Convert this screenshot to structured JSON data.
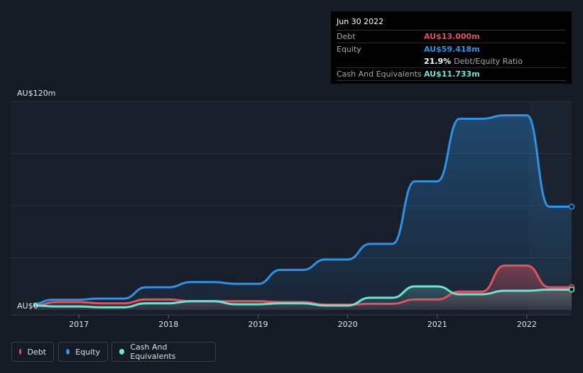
{
  "tooltip": {
    "date": "Jun 30 2022",
    "debt_label": "Debt",
    "debt_value": "AU$13.000m",
    "equity_label": "Equity",
    "equity_value": "AU$59.418m",
    "ratio_value": "21.9%",
    "ratio_label": "Debt/Equity Ratio",
    "cash_label": "Cash And Equivalents",
    "cash_value": "AU$11.733m"
  },
  "legend": {
    "debt": "Debt",
    "equity": "Equity",
    "cash": "Cash And Equivalents"
  },
  "colors": {
    "background": "#151b24",
    "debt": "#e05260",
    "equity": "#2e93e6",
    "cash": "#6fe3cf"
  },
  "chart_data": {
    "type": "area",
    "title": "",
    "xlabel": "",
    "ylabel": "",
    "ylim": [
      0,
      120
    ],
    "xlim": [
      2016.5,
      2022.5
    ],
    "y_tick_labels": [
      "AU$0",
      "AU$120m"
    ],
    "x_tick_labels": [
      "2017",
      "2018",
      "2019",
      "2020",
      "2021",
      "2022"
    ],
    "x_tick_values": [
      2017,
      2018,
      2019,
      2020,
      2021,
      2022
    ],
    "series": [
      {
        "name": "Equity",
        "x": [
          2016.5,
          2016.7,
          2017.0,
          2017.2,
          2017.5,
          2017.75,
          2018.0,
          2018.25,
          2018.5,
          2018.75,
          2019.0,
          2019.25,
          2019.5,
          2019.75,
          2020.0,
          2020.25,
          2020.5,
          2020.75,
          2021.0,
          2021.25,
          2021.5,
          2021.75,
          2022.0,
          2022.25,
          2022.5
        ],
        "values": [
          3.5,
          5.8,
          5.8,
          6.5,
          6.5,
          13,
          13,
          16,
          16,
          15,
          15,
          23,
          23,
          29,
          29,
          38,
          38,
          74,
          74,
          110,
          110,
          112,
          112,
          59.4,
          59.4
        ]
      },
      {
        "name": "Debt",
        "x": [
          2016.5,
          2016.75,
          2017.0,
          2017.25,
          2017.5,
          2017.75,
          2018.0,
          2018.25,
          2018.5,
          2018.75,
          2019.0,
          2019.25,
          2019.5,
          2019.75,
          2020.0,
          2020.25,
          2020.5,
          2020.75,
          2021.0,
          2021.25,
          2021.5,
          2021.75,
          2022.0,
          2022.25,
          2022.5
        ],
        "values": [
          2.5,
          4.5,
          4.5,
          3.8,
          3.8,
          6,
          6,
          5,
          5,
          5,
          5,
          4.5,
          4.5,
          3,
          3,
          3.5,
          3.5,
          6,
          6,
          10.5,
          10.5,
          25.5,
          25.5,
          13,
          13
        ]
      },
      {
        "name": "Cash And Equivalents",
        "x": [
          2016.5,
          2016.75,
          2017.0,
          2017.25,
          2017.5,
          2017.75,
          2018.0,
          2018.25,
          2018.5,
          2018.75,
          2019.0,
          2019.25,
          2019.5,
          2019.75,
          2020.0,
          2020.25,
          2020.5,
          2020.75,
          2021.0,
          2021.25,
          2021.5,
          2021.75,
          2022.0,
          2022.25,
          2022.5
        ],
        "values": [
          2.5,
          2,
          2,
          1.5,
          1.5,
          3.8,
          3.8,
          5,
          5,
          3.2,
          3.2,
          3.8,
          3.8,
          2.5,
          2.5,
          7,
          7,
          13.5,
          13.5,
          9,
          9,
          11,
          11,
          11.7,
          11.7
        ]
      }
    ]
  }
}
